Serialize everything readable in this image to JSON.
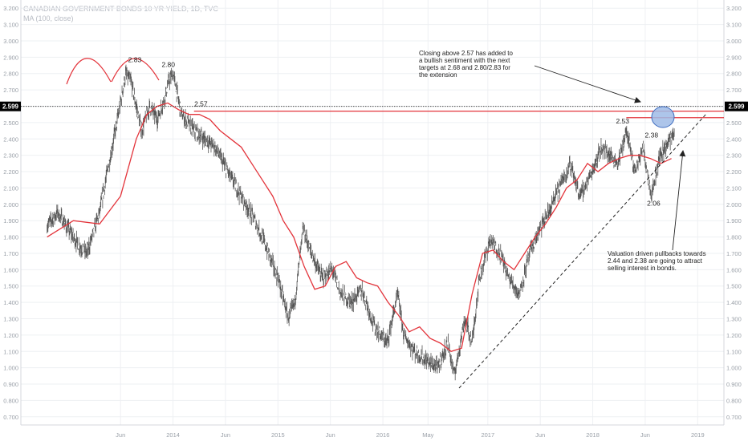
{
  "header": {
    "title": "CANADIAN GOVERNMENT BONDS 10 YR YIELD, 1D, TVC",
    "ma_label": "MA (100, close)"
  },
  "colors": {
    "price": "#555555",
    "ma": "#e3343b",
    "resistance": "#e3343b",
    "current_line": "#333333",
    "trendline": "#222222",
    "grid": "#eef0f3",
    "axis_text": "#9aa0a8",
    "circle_fill": "#9fbbe6",
    "circle_stroke": "#3d6bbf"
  },
  "chart_data": {
    "type": "line",
    "title": "CANADIAN GOVERNMENT BONDS 10 YR YIELD, 1D, TVC",
    "ylim": [
      0.65,
      3.25
    ],
    "yticks": [
      "0.700",
      "0.800",
      "0.900",
      "1.000",
      "1.100",
      "1.200",
      "1.300",
      "1.400",
      "1.500",
      "1.600",
      "1.700",
      "1.800",
      "1.900",
      "2.000",
      "2.100",
      "2.200",
      "2.300",
      "2.400",
      "2.500",
      "2.600",
      "2.700",
      "2.800",
      "2.900",
      "3.000",
      "3.100",
      "3.200"
    ],
    "xticks": [
      {
        "label": "Jun",
        "t": 0.7
      },
      {
        "label": "2014",
        "t": 1.2
      },
      {
        "label": "Jun",
        "t": 1.7
      },
      {
        "label": "2015",
        "t": 2.2
      },
      {
        "label": "Jun",
        "t": 2.7
      },
      {
        "label": "2016",
        "t": 3.2
      },
      {
        "label": "May",
        "t": 3.63
      },
      {
        "label": "2017",
        "t": 4.2
      },
      {
        "label": "Jun",
        "t": 4.7
      },
      {
        "label": "2018",
        "t": 5.2
      },
      {
        "label": "Jun",
        "t": 5.7
      },
      {
        "label": "2019",
        "t": 6.2
      }
    ],
    "series": [
      {
        "values_t": [
          0.0,
          0.1,
          0.2,
          0.3,
          0.38,
          0.5,
          0.62,
          0.68,
          0.75,
          0.8,
          0.9,
          0.98,
          1.05,
          1.12,
          1.16,
          1.2,
          1.28,
          1.4,
          1.5,
          1.6,
          1.72,
          1.85,
          1.98,
          2.05,
          2.2,
          2.3,
          2.36,
          2.44,
          2.52,
          2.62,
          2.72,
          2.8,
          2.9,
          3.0,
          3.12,
          3.24,
          3.34,
          3.4,
          3.5,
          3.6,
          3.72,
          3.82,
          3.88,
          3.98,
          4.05,
          4.12,
          4.22,
          4.32,
          4.4,
          4.5,
          4.6,
          4.7,
          4.78,
          4.88,
          4.98,
          5.08,
          5.18,
          5.28,
          5.36,
          5.44,
          5.52,
          5.6,
          5.68,
          5.76,
          5.84,
          5.92,
          5.98
        ],
        "values": [
          1.87,
          1.95,
          1.85,
          1.75,
          1.7,
          1.95,
          2.35,
          2.55,
          2.8,
          2.75,
          2.45,
          2.6,
          2.52,
          2.65,
          2.75,
          2.8,
          2.55,
          2.45,
          2.4,
          2.35,
          2.2,
          2.05,
          1.9,
          1.8,
          1.55,
          1.3,
          1.4,
          1.85,
          1.7,
          1.55,
          1.6,
          1.45,
          1.4,
          1.48,
          1.25,
          1.15,
          1.45,
          1.2,
          1.1,
          1.05,
          1.0,
          1.15,
          0.95,
          1.3,
          1.15,
          1.55,
          1.78,
          1.7,
          1.55,
          1.45,
          1.7,
          1.85,
          1.95,
          2.1,
          2.25,
          2.05,
          2.18,
          2.35,
          2.3,
          2.25,
          2.45,
          2.2,
          2.35,
          2.06,
          2.3,
          2.38,
          2.45
        ]
      },
      {
        "name": "MA (100, close)",
        "values_t": [
          0.0,
          0.25,
          0.5,
          0.7,
          0.85,
          0.95,
          1.05,
          1.15,
          1.25,
          1.35,
          1.45,
          1.55,
          1.65,
          1.75,
          1.85,
          1.95,
          2.05,
          2.15,
          2.25,
          2.35,
          2.45,
          2.55,
          2.65,
          2.75,
          2.85,
          2.95,
          3.05,
          3.15,
          3.25,
          3.35,
          3.45,
          3.55,
          3.65,
          3.75,
          3.85,
          3.95,
          4.05,
          4.15,
          4.25,
          4.35,
          4.45,
          4.55,
          4.65,
          4.75,
          4.85,
          4.95,
          5.05,
          5.15,
          5.25,
          5.35,
          5.45,
          5.55,
          5.65,
          5.75,
          5.85,
          5.95
        ],
        "values": [
          1.8,
          1.9,
          1.88,
          2.05,
          2.4,
          2.55,
          2.6,
          2.62,
          2.58,
          2.55,
          2.55,
          2.52,
          2.45,
          2.4,
          2.35,
          2.25,
          2.15,
          2.05,
          1.9,
          1.8,
          1.62,
          1.48,
          1.5,
          1.62,
          1.65,
          1.55,
          1.52,
          1.5,
          1.4,
          1.32,
          1.22,
          1.25,
          1.18,
          1.15,
          1.1,
          1.12,
          1.45,
          1.7,
          1.72,
          1.65,
          1.6,
          1.7,
          1.8,
          1.88,
          1.98,
          2.1,
          2.15,
          2.25,
          2.2,
          2.25,
          2.28,
          2.3,
          2.3,
          2.28,
          2.25,
          2.28
        ]
      }
    ],
    "levels": [
      {
        "label": "2.599",
        "value": 2.599
      },
      {
        "value": 2.57
      },
      {
        "value": 2.53
      }
    ],
    "price_labels": [
      {
        "text": "2.83",
        "t": 0.82,
        "v": 2.83
      },
      {
        "text": "2.80",
        "t": 1.14,
        "v": 2.8
      },
      {
        "text": "2.57",
        "t": 1.42,
        "v": 2.57
      },
      {
        "text": "2.53",
        "t": 5.53,
        "v": 2.53
      },
      {
        "text": "2.38",
        "t": 5.76,
        "v": 2.38
      },
      {
        "text": "2.06",
        "t": 5.78,
        "v": 2.06
      }
    ],
    "annotations": [
      {
        "lines": [
          "Closing above 2.57 has added to",
          "a bullish sentiment with the next",
          "targets at 2.68 and 2.80/2.83 for",
          "the extension"
        ]
      },
      {
        "lines": [
          "Valuation driven pullbacks towards",
          "2.44 and 2.38 are going to attract",
          "selling interest in bonds."
        ]
      }
    ]
  }
}
